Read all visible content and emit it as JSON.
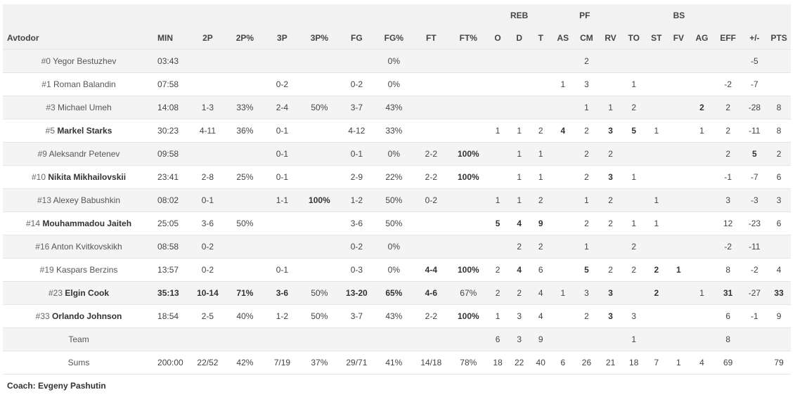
{
  "team_name": "Avtodor",
  "group_labels": {
    "reb": "REB",
    "pf": "PF",
    "bs": "BS"
  },
  "columns": [
    "MIN",
    "2P",
    "2P%",
    "3P",
    "3P%",
    "FG",
    "FG%",
    "FT",
    "FT%",
    "O",
    "D",
    "T",
    "AS",
    "CM",
    "RV",
    "TO",
    "ST",
    "FV",
    "AG",
    "EFF",
    "+/-",
    "PTS"
  ],
  "rows": [
    {
      "num": "#0",
      "name": "Yegor Bestuzhev",
      "bold_name": false,
      "cells": [
        "03:43",
        "",
        "",
        "",
        "",
        "",
        "0%",
        "",
        "",
        "",
        "",
        "",
        "",
        "2",
        "",
        "",
        "",
        "",
        "",
        "",
        "-5",
        ""
      ],
      "bold": []
    },
    {
      "num": "#1",
      "name": "Roman Balandin",
      "bold_name": false,
      "cells": [
        "07:58",
        "",
        "",
        "0-2",
        "",
        "0-2",
        "0%",
        "",
        "",
        "",
        "",
        "",
        "1",
        "3",
        "",
        "1",
        "",
        "",
        "",
        "-2",
        "-7",
        ""
      ],
      "bold": []
    },
    {
      "num": "#3",
      "name": "Michael Umeh",
      "bold_name": false,
      "cells": [
        "14:08",
        "1-3",
        "33%",
        "2-4",
        "50%",
        "3-7",
        "43%",
        "",
        "",
        "",
        "",
        "",
        "",
        "1",
        "1",
        "2",
        "",
        "",
        "2",
        "2",
        "-28",
        "8"
      ],
      "bold": [
        18
      ]
    },
    {
      "num": "#5",
      "name": "Markel Starks",
      "bold_name": true,
      "cells": [
        "30:23",
        "4-11",
        "36%",
        "0-1",
        "",
        "4-12",
        "33%",
        "",
        "",
        "1",
        "1",
        "2",
        "4",
        "2",
        "3",
        "5",
        "1",
        "",
        "1",
        "2",
        "-11",
        "8"
      ],
      "bold": [
        12,
        14,
        15
      ]
    },
    {
      "num": "#9",
      "name": "Aleksandr Petenev",
      "bold_name": false,
      "cells": [
        "09:58",
        "",
        "",
        "0-1",
        "",
        "0-1",
        "0%",
        "2-2",
        "100%",
        "",
        "1",
        "1",
        "",
        "2",
        "2",
        "",
        "",
        "",
        "",
        "2",
        "5",
        "2"
      ],
      "bold": [
        8,
        20
      ]
    },
    {
      "num": "#10",
      "name": "Nikita Mikhailovskii",
      "bold_name": true,
      "cells": [
        "23:41",
        "2-8",
        "25%",
        "0-1",
        "",
        "2-9",
        "22%",
        "2-2",
        "100%",
        "",
        "1",
        "1",
        "",
        "2",
        "3",
        "1",
        "",
        "",
        "",
        "-1",
        "-7",
        "6"
      ],
      "bold": [
        8,
        14
      ]
    },
    {
      "num": "#13",
      "name": "Alexey Babushkin",
      "bold_name": false,
      "cells": [
        "08:02",
        "0-1",
        "",
        "1-1",
        "100%",
        "1-2",
        "50%",
        "0-2",
        "",
        "1",
        "1",
        "2",
        "",
        "1",
        "2",
        "",
        "1",
        "",
        "",
        "3",
        "-3",
        "3"
      ],
      "bold": [
        4
      ]
    },
    {
      "num": "#14",
      "name": "Mouhammadou Jaiteh",
      "bold_name": true,
      "cells": [
        "25:05",
        "3-6",
        "50%",
        "",
        "",
        "3-6",
        "50%",
        "",
        "",
        "5",
        "4",
        "9",
        "",
        "2",
        "2",
        "1",
        "1",
        "",
        "",
        "12",
        "-23",
        "6"
      ],
      "bold": [
        9,
        10,
        11
      ]
    },
    {
      "num": "#16",
      "name": "Anton Kvitkovskikh",
      "bold_name": false,
      "cells": [
        "08:58",
        "0-2",
        "",
        "",
        "",
        "0-2",
        "0%",
        "",
        "",
        "",
        "2",
        "2",
        "",
        "1",
        "",
        "2",
        "",
        "",
        "",
        "-2",
        "-11",
        ""
      ],
      "bold": []
    },
    {
      "num": "#19",
      "name": "Kaspars Berzins",
      "bold_name": false,
      "cells": [
        "13:57",
        "0-2",
        "",
        "0-1",
        "",
        "0-3",
        "0%",
        "4-4",
        "100%",
        "2",
        "4",
        "6",
        "",
        "5",
        "2",
        "2",
        "2",
        "1",
        "",
        "8",
        "-2",
        "4"
      ],
      "bold": [
        7,
        8,
        10,
        13,
        16,
        17
      ]
    },
    {
      "num": "#23",
      "name": "Elgin Cook",
      "bold_name": true,
      "cells": [
        "35:13",
        "10-14",
        "71%",
        "3-6",
        "50%",
        "13-20",
        "65%",
        "4-6",
        "67%",
        "2",
        "2",
        "4",
        "1",
        "3",
        "3",
        "",
        "2",
        "",
        "1",
        "31",
        "-27",
        "33"
      ],
      "bold": [
        0,
        1,
        2,
        3,
        5,
        6,
        7,
        14,
        16,
        19,
        21
      ]
    },
    {
      "num": "#33",
      "name": "Orlando Johnson",
      "bold_name": true,
      "cells": [
        "18:54",
        "2-5",
        "40%",
        "1-2",
        "50%",
        "3-7",
        "43%",
        "2-2",
        "100%",
        "1",
        "3",
        "4",
        "",
        "2",
        "3",
        "3",
        "",
        "",
        "",
        "6",
        "-1",
        "9"
      ],
      "bold": [
        8,
        14
      ]
    },
    {
      "num": "",
      "name": "Team",
      "bold_name": false,
      "cells": [
        "",
        "",
        "",
        "",
        "",
        "",
        "",
        "",
        "",
        "6",
        "3",
        "9",
        "",
        "",
        "",
        "1",
        "",
        "",
        "",
        "8",
        "",
        ""
      ],
      "bold": []
    },
    {
      "num": "",
      "name": "Sums",
      "bold_name": false,
      "cells": [
        "200:00",
        "22/52",
        "42%",
        "7/19",
        "37%",
        "29/71",
        "41%",
        "14/18",
        "78%",
        "18",
        "22",
        "40",
        "6",
        "26",
        "21",
        "18",
        "7",
        "1",
        "4",
        "69",
        "",
        "79"
      ],
      "bold": []
    }
  ],
  "coach": "Coach: Evgeny Pashutin"
}
